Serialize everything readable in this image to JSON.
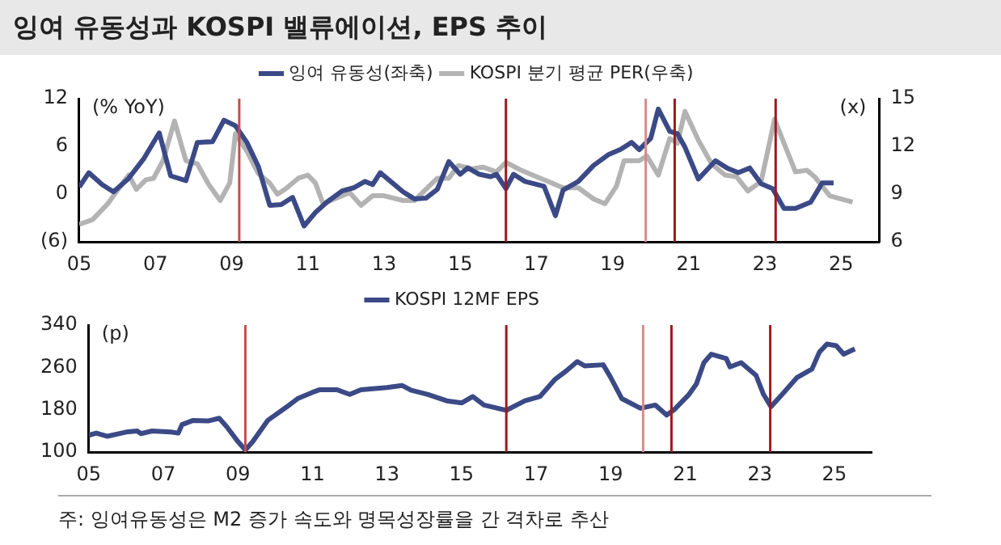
{
  "chart_data": [
    {
      "type": "line",
      "title": "잉여 유동성과 KOSPI 밸류에이션, EPS 추이",
      "ylabel": "(% YoY)",
      "y2label": "(x)",
      "xlim": [
        2005,
        2026
      ],
      "xticks": [
        {
          "value": 2005,
          "label": "05"
        },
        {
          "value": 2007,
          "label": "07"
        },
        {
          "value": 2009,
          "label": "09"
        },
        {
          "value": 2011,
          "label": "11"
        },
        {
          "value": 2013,
          "label": "13"
        },
        {
          "value": 2015,
          "label": "15"
        },
        {
          "value": 2017,
          "label": "17"
        },
        {
          "value": 2019,
          "label": "19"
        },
        {
          "value": 2021,
          "label": "21"
        },
        {
          "value": 2023,
          "label": "23"
        },
        {
          "value": 2025,
          "label": "25"
        }
      ],
      "ylim": [
        -6,
        12
      ],
      "yticks": [
        {
          "value": -6,
          "label": "(6)"
        },
        0,
        6,
        12
      ],
      "y2lim": [
        6,
        15
      ],
      "y2ticks": [
        6,
        9,
        12,
        15
      ],
      "grid": false,
      "legend": "top",
      "marker": "none",
      "line_style": "solid",
      "series": [
        {
          "name": "잉여 유동성(좌축)",
          "color": "#3b4a86",
          "x": [
            2005.0,
            2005.25,
            2005.6,
            2005.9,
            2006.3,
            2006.7,
            2007.1,
            2007.4,
            2007.8,
            2008.1,
            2008.5,
            2008.8,
            2009.1,
            2009.4,
            2009.7,
            2010.0,
            2010.3,
            2010.6,
            2010.9,
            2011.2,
            2011.5,
            2011.9,
            2012.2,
            2012.5,
            2012.7,
            2012.9,
            2013.2,
            2013.5,
            2013.8,
            2014.1,
            2014.4,
            2014.7,
            2015.0,
            2015.2,
            2015.5,
            2015.8,
            2015.95,
            2016.2,
            2016.4,
            2016.7,
            2017.2,
            2017.5,
            2017.7,
            2018.1,
            2018.5,
            2018.9,
            2019.2,
            2019.5,
            2019.7,
            2020.0,
            2020.2,
            2020.5,
            2020.7,
            2020.9,
            2021.25,
            2021.7,
            2022.0,
            2022.3,
            2022.6,
            2022.9,
            2023.2,
            2023.5,
            2023.8,
            2024.2,
            2024.5,
            2024.8
          ],
          "values": [
            0.9,
            2.7,
            1.2,
            0.3,
            2.0,
            4.5,
            7.7,
            2.3,
            1.7,
            6.5,
            6.6,
            9.3,
            8.6,
            6.5,
            3.5,
            -1.4,
            -1.3,
            -0.4,
            -4.0,
            -2.3,
            -1.0,
            0.4,
            0.8,
            1.6,
            1.2,
            2.7,
            1.5,
            0.3,
            -0.6,
            -0.5,
            0.6,
            4.1,
            2.5,
            3.3,
            2.5,
            2.2,
            2.5,
            0.7,
            2.5,
            1.6,
            1.0,
            -2.7,
            0.5,
            1.6,
            3.6,
            5.0,
            5.6,
            6.5,
            5.6,
            7.0,
            10.7,
            7.9,
            7.6,
            5.9,
            1.9,
            4.2,
            3.3,
            2.7,
            3.3,
            1.3,
            0.7,
            -1.8,
            -1.8,
            -1.0,
            1.4,
            1.4
          ]
        },
        {
          "name": "KOSPI 분기 평균 PER(우축)",
          "color": "#b3b3b3",
          "axis": "y2",
          "x": [
            2005.0,
            2005.35,
            2005.75,
            2006.05,
            2006.3,
            2006.5,
            2006.75,
            2006.95,
            2007.2,
            2007.5,
            2007.8,
            2008.1,
            2008.4,
            2008.7,
            2008.95,
            2009.1,
            2009.4,
            2009.7,
            2010.0,
            2010.2,
            2010.4,
            2010.75,
            2011.0,
            2011.2,
            2011.4,
            2011.7,
            2012.1,
            2012.4,
            2012.7,
            2013.0,
            2013.5,
            2013.8,
            2014.1,
            2014.4,
            2014.7,
            2014.95,
            2015.3,
            2015.6,
            2015.95,
            2016.2,
            2016.6,
            2017.0,
            2017.4,
            2017.7,
            2018.1,
            2018.5,
            2018.8,
            2019.1,
            2019.3,
            2019.7,
            2019.9,
            2020.2,
            2020.5,
            2020.7,
            2020.9,
            2021.25,
            2021.6,
            2021.95,
            2022.25,
            2022.55,
            2022.9,
            2023.25,
            2023.55,
            2023.8,
            2024.1,
            2024.3,
            2024.7,
            2025.0,
            2025.3
          ],
          "values": [
            7.1,
            7.4,
            8.4,
            9.4,
            10.2,
            9.3,
            9.9,
            10.0,
            11.1,
            13.6,
            11.1,
            10.9,
            9.6,
            8.6,
            9.7,
            12.8,
            11.7,
            10.3,
            9.7,
            9.0,
            9.3,
            10.0,
            10.2,
            9.7,
            8.4,
            8.7,
            9.1,
            8.3,
            8.9,
            8.9,
            8.6,
            8.6,
            9.3,
            10.0,
            10.0,
            10.8,
            10.6,
            10.7,
            10.4,
            11.0,
            10.5,
            10.1,
            9.7,
            9.4,
            9.4,
            8.7,
            8.4,
            9.5,
            11.1,
            11.1,
            11.4,
            10.2,
            12.5,
            12.2,
            14.2,
            12.4,
            10.9,
            10.2,
            10.1,
            9.2,
            9.8,
            13.7,
            11.9,
            10.4,
            10.5,
            10.1,
            8.9,
            8.7,
            8.5
          ]
        }
      ],
      "ref_lines": [
        {
          "axis": "x",
          "value": 2009.2,
          "color": "#c0504d"
        },
        {
          "axis": "x",
          "value": 2016.2,
          "color": "#a0181c"
        },
        {
          "axis": "x",
          "value": 2019.87,
          "color": "#d98a8a"
        },
        {
          "axis": "x",
          "value": 2020.63,
          "color": "#a0181c"
        },
        {
          "axis": "x",
          "value": 2023.28,
          "color": "#a0181c"
        }
      ]
    },
    {
      "type": "line",
      "ylabel": "(p)",
      "annotations": [
        "주: 잉여유동성은 M2 증가 속도와 명목성장률을 간 격차로 추산"
      ],
      "xlim": [
        2005,
        2026
      ],
      "xticks": [
        {
          "value": 2005,
          "label": "05"
        },
        {
          "value": 2007,
          "label": "07"
        },
        {
          "value": 2009,
          "label": "09"
        },
        {
          "value": 2011,
          "label": "11"
        },
        {
          "value": 2013,
          "label": "13"
        },
        {
          "value": 2015,
          "label": "15"
        },
        {
          "value": 2017,
          "label": "17"
        },
        {
          "value": 2019,
          "label": "19"
        },
        {
          "value": 2021,
          "label": "21"
        },
        {
          "value": 2023,
          "label": "23"
        },
        {
          "value": 2025,
          "label": "25"
        }
      ],
      "ylim": [
        100,
        340
      ],
      "yticks": [
        100,
        180,
        260,
        340
      ],
      "grid": false,
      "legend": "top",
      "marker": "none",
      "line_style": "solid",
      "series": [
        {
          "name": "KOSPI 12MF EPS",
          "color": "#3b4a86",
          "x": [
            2005.0,
            2005.2,
            2005.5,
            2006.0,
            2006.3,
            2006.4,
            2006.7,
            2007.2,
            2007.4,
            2007.5,
            2007.8,
            2008.2,
            2008.5,
            2008.7,
            2009.0,
            2009.2,
            2009.4,
            2009.8,
            2010.3,
            2010.6,
            2011.0,
            2011.2,
            2011.65,
            2012.0,
            2012.3,
            2013.0,
            2013.4,
            2013.65,
            2014.1,
            2014.6,
            2015.0,
            2015.3,
            2015.6,
            2016.2,
            2016.7,
            2017.1,
            2017.5,
            2017.8,
            2018.1,
            2018.3,
            2018.8,
            2019.0,
            2019.3,
            2019.8,
            2020.2,
            2020.5,
            2020.7,
            2021.1,
            2021.3,
            2021.5,
            2021.7,
            2022.1,
            2022.2,
            2022.5,
            2022.9,
            2023.1,
            2023.3,
            2023.6,
            2024.0,
            2024.4,
            2024.6,
            2024.8,
            2025.05,
            2025.25,
            2025.55
          ],
          "values": [
            132,
            136,
            130,
            138,
            140,
            135,
            140,
            138,
            136,
            152,
            160,
            159,
            164,
            148,
            120,
            104,
            120,
            160,
            185,
            201,
            213,
            218,
            218,
            209,
            218,
            222,
            226,
            217,
            209,
            197,
            193,
            205,
            189,
            179,
            197,
            205,
            237,
            253,
            271,
            263,
            265,
            241,
            201,
            183,
            189,
            170,
            180,
            209,
            229,
            269,
            285,
            277,
            261,
            269,
            245,
            209,
            186,
            209,
            241,
            257,
            289,
            304,
            301,
            285,
            295
          ]
        }
      ],
      "ref_lines": [
        {
          "axis": "x",
          "value": 2009.2,
          "color": "#c0504d"
        },
        {
          "axis": "x",
          "value": 2016.2,
          "color": "#a0181c"
        },
        {
          "axis": "x",
          "value": 2019.87,
          "color": "#d98a8a"
        },
        {
          "axis": "x",
          "value": 2020.63,
          "color": "#a0181c"
        },
        {
          "axis": "x",
          "value": 2023.28,
          "color": "#a0181c"
        }
      ]
    }
  ]
}
